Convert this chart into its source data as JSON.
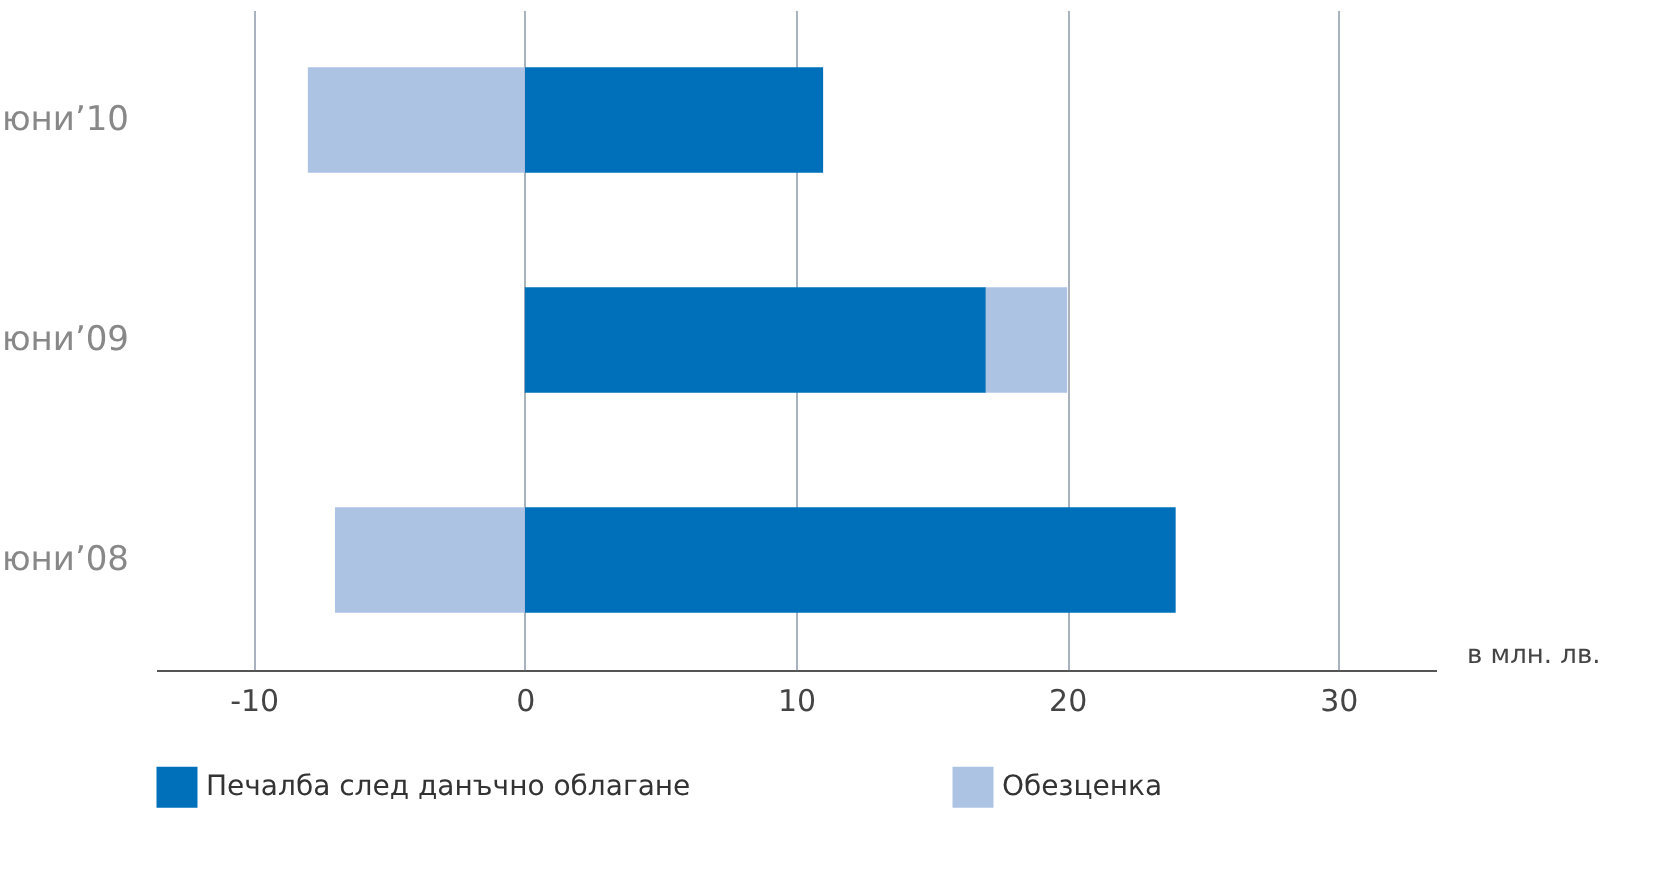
{
  "chart_data": {
    "type": "bar",
    "orientation": "horizontal",
    "stacked": true,
    "categories": [
      "юни’10",
      "юни’09",
      "юни’08"
    ],
    "series": [
      {
        "name": "Печалба след данъчно облагане",
        "color": "#0070bb",
        "values": [
          11,
          17,
          24
        ]
      },
      {
        "name": "Обезценка",
        "color": "#adc3e3",
        "values": [
          -8,
          3,
          -7
        ]
      }
    ],
    "xlim": [
      -13.6,
      33.6
    ],
    "xticks": [
      -10,
      0,
      10,
      20,
      30
    ],
    "xlabel": "в млн. лв.",
    "grid": "x",
    "legend": "bottom"
  }
}
